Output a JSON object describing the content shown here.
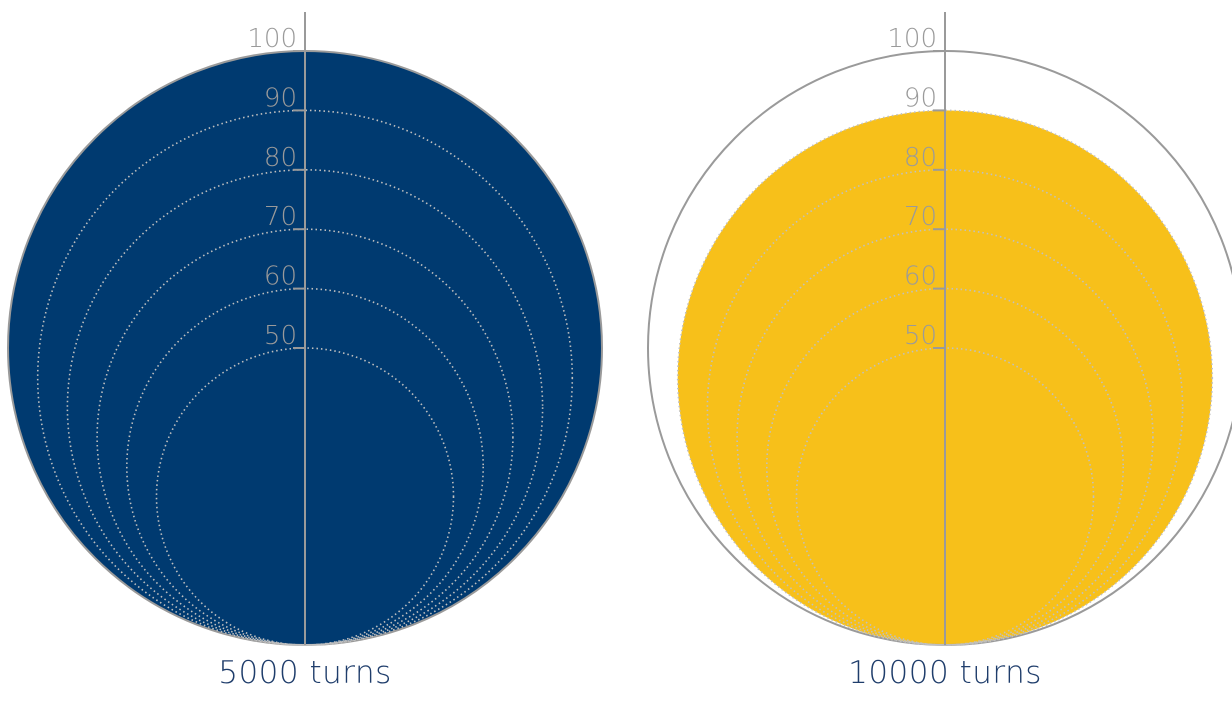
{
  "chart_data": [
    {
      "type": "nested-circle",
      "label": "5000 turns",
      "value": 100,
      "max": 100,
      "fill_color": "#003a70",
      "ring_values": [
        100,
        90,
        80,
        70,
        60,
        50
      ],
      "tick_labels": [
        "100",
        "90",
        "80",
        "70",
        "60",
        "50"
      ]
    },
    {
      "type": "nested-circle",
      "label": "10000 turns",
      "value": 90,
      "max": 100,
      "fill_color": "#f7c01a",
      "ring_values": [
        100,
        90,
        80,
        70,
        60,
        50
      ],
      "tick_labels": [
        "100",
        "90",
        "80",
        "70",
        "60",
        "50"
      ]
    }
  ],
  "colors": {
    "axis": "#9a9a9a",
    "ring": "#c0c0c0",
    "label_text": "#1f3d6b"
  }
}
